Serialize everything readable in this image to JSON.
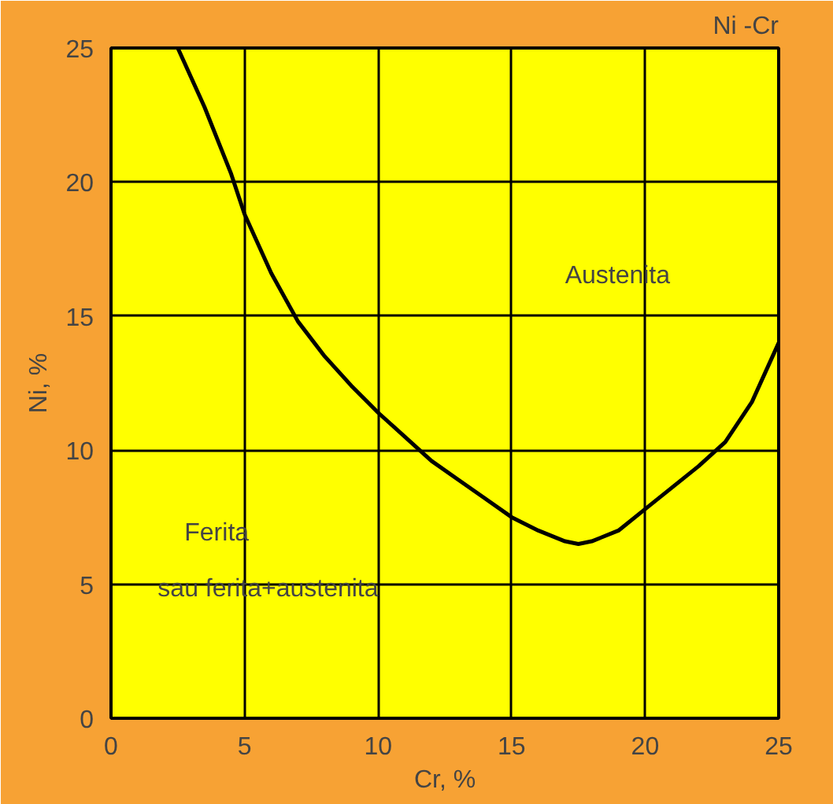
{
  "chart_data": {
    "type": "line",
    "title": "Ni -Cr",
    "xlabel": "Cr, %",
    "ylabel": "Ni, %",
    "x": [
      2.5,
      3.5,
      4.5,
      5,
      6,
      7,
      8,
      9,
      10,
      11,
      12,
      13,
      14,
      15,
      16,
      17,
      17.5,
      18,
      19,
      20,
      21,
      22,
      23,
      24,
      25
    ],
    "series": [
      {
        "color": "#000000",
        "values": [
          25,
          22.8,
          20.3,
          18.8,
          16.6,
          14.8,
          13.5,
          12.4,
          11.4,
          10.5,
          9.6,
          8.9,
          8.2,
          7.5,
          7,
          6.6,
          6.5,
          6.6,
          7.0,
          7.8,
          8.6,
          9.4,
          10.3,
          11.8,
          14
        ]
      }
    ],
    "xlim": [
      0,
      25
    ],
    "ylim": [
      0,
      25
    ],
    "xticks": [
      0,
      5,
      10,
      15,
      20,
      25
    ],
    "yticks": [
      0,
      5,
      10,
      15,
      20,
      25
    ],
    "grid": true,
    "marker": "none",
    "line_style": "solid",
    "annotations": [
      "Austenita",
      "Ferita",
      "sau ferita+austenita"
    ]
  }
}
